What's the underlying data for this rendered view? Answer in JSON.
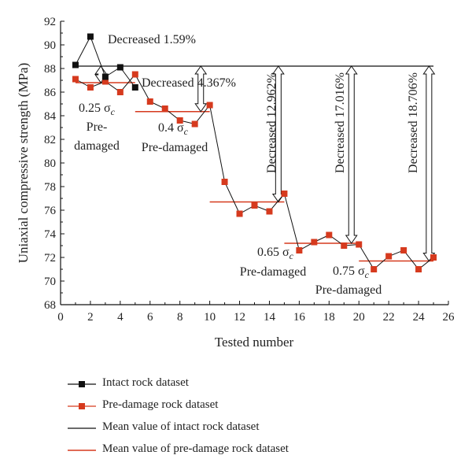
{
  "chart_data": {
    "type": "line",
    "xlabel": "Tested number",
    "ylabel": "Uniaxial compressive strength (MPa)",
    "xlim": [
      0,
      26
    ],
    "ylim": [
      68,
      92
    ],
    "xticks": [
      0,
      2,
      4,
      6,
      8,
      10,
      12,
      14,
      16,
      18,
      20,
      22,
      24,
      26
    ],
    "yticks": [
      68,
      70,
      72,
      74,
      76,
      78,
      80,
      82,
      84,
      86,
      88,
      90,
      92
    ],
    "grid": false,
    "legend_position": "bottom",
    "series": [
      {
        "name": "Intact rock dataset",
        "color": "#111111",
        "marker": "square",
        "x": [
          1,
          2,
          3,
          4,
          5
        ],
        "y": [
          88.3,
          90.7,
          87.3,
          88.1,
          86.4
        ]
      },
      {
        "name": "Pre-damage rock dataset",
        "color": "#d63a1e",
        "marker": "square",
        "x": [
          1,
          2,
          3,
          4,
          5,
          6,
          7,
          8,
          9,
          10,
          11,
          12,
          13,
          14,
          15,
          16,
          17,
          18,
          19,
          20,
          21,
          22,
          23,
          24,
          25
        ],
        "y": [
          87.1,
          86.4,
          86.9,
          86.0,
          87.5,
          85.2,
          84.6,
          83.6,
          83.3,
          84.9,
          78.4,
          75.7,
          76.4,
          75.9,
          77.4,
          72.6,
          73.3,
          73.9,
          73.0,
          73.1,
          71.0,
          72.1,
          72.6,
          71.0,
          72.0
        ]
      },
      {
        "name": "Mean value of intact rock dataset",
        "color": "#111111",
        "type": "hline",
        "y": 88.2,
        "x_range": [
          1,
          25
        ]
      },
      {
        "name": "Mean value of pre-damage rock dataset",
        "color": "#d63a1e",
        "type": "segments",
        "segments": [
          {
            "x": [
              1,
              5
            ],
            "y": 86.8
          },
          {
            "x": [
              5,
              10
            ],
            "y": 84.35
          },
          {
            "x": [
              10,
              15
            ],
            "y": 76.7
          },
          {
            "x": [
              15,
              20
            ],
            "y": 73.2
          },
          {
            "x": [
              20,
              25
            ],
            "y": 71.7
          }
        ]
      }
    ],
    "annotations": [
      {
        "text": "Decreased 1.59%",
        "x": 2.7,
        "y_from": 88.2,
        "y_to": 86.8
      },
      {
        "text": "Decreased 4.367%",
        "x": 9.4,
        "y_from": 88.2,
        "y_to": 84.35
      },
      {
        "text": "Decreased 12.962%",
        "x": 14.6,
        "y_from": 88.2,
        "y_to": 76.7
      },
      {
        "text": "Decreased 17.016%",
        "x": 19.5,
        "y_from": 88.2,
        "y_to": 73.2
      },
      {
        "text": "Decreased 18.706%",
        "x": 24.7,
        "y_from": 88.2,
        "y_to": 71.7
      }
    ],
    "group_labels": [
      {
        "line1": "0.25 σ",
        "sub": "c",
        "line2": "Pre-",
        "line3": "damaged"
      },
      {
        "line1": "0.4 σ",
        "sub": "c",
        "line2": "Pre-damaged"
      },
      {
        "line1": "0.65 σ",
        "sub": "c",
        "line2": "Pre-damaged"
      },
      {
        "line1": "0.75 σ",
        "sub": "c",
        "line2": "Pre-damaged"
      }
    ]
  }
}
